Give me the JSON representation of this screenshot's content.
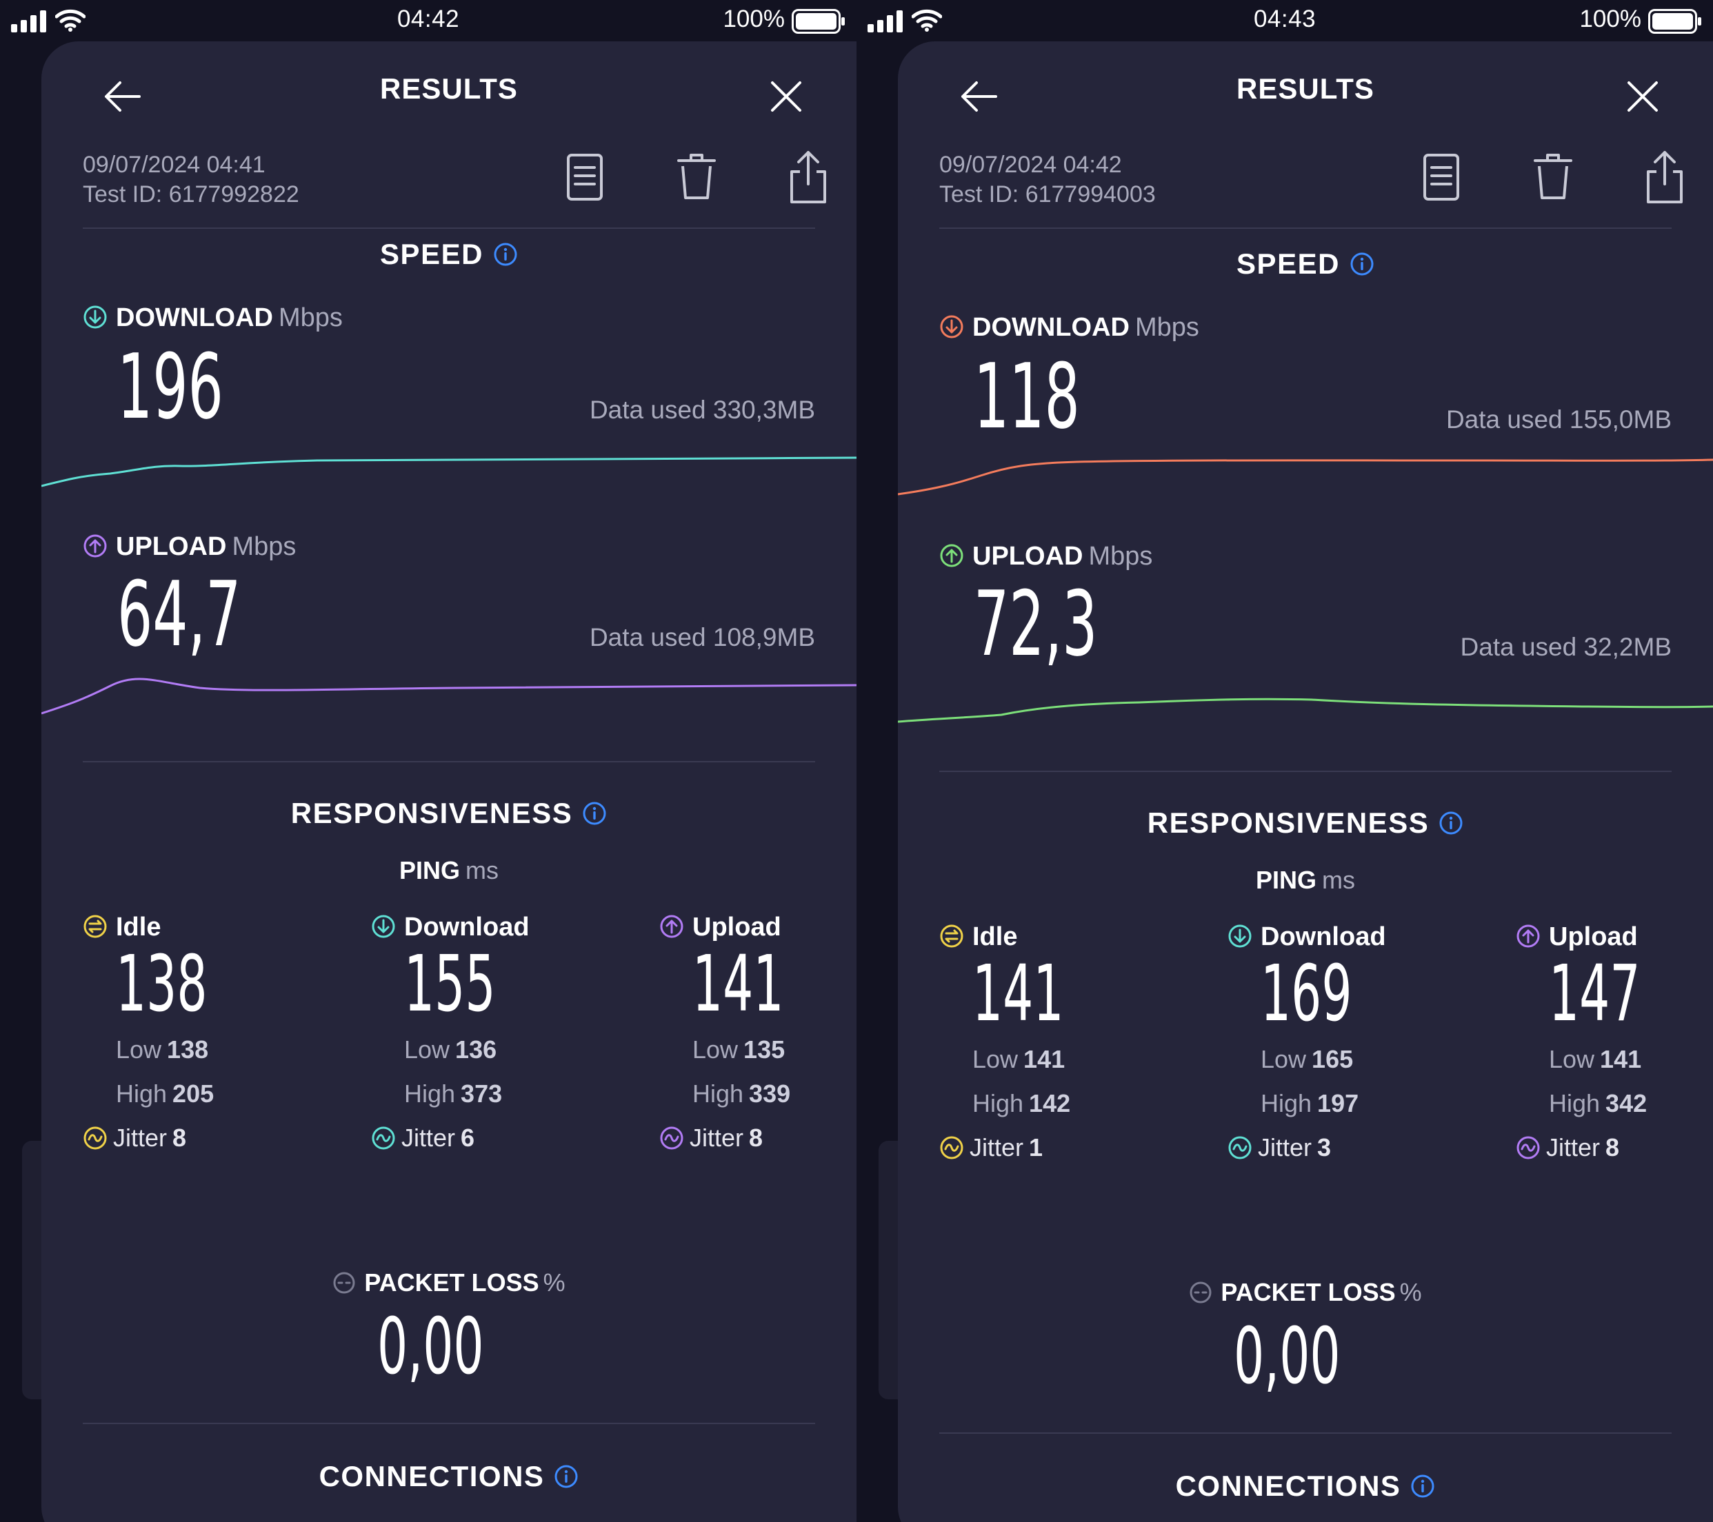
{
  "colors": {
    "background": "#121221",
    "card": "#25253a",
    "accent_info": "#3d8bff",
    "download_left": "#5fe0d4",
    "upload_left": "#b27cf5",
    "download_right": "#f47c5c",
    "upload_right": "#7de07a",
    "idle": "#f0d248",
    "ping_download": "#5fe0d4",
    "ping_upload": "#b27cf5"
  },
  "screens": [
    {
      "status": {
        "time": "04:42",
        "battery": "100%"
      },
      "header": {
        "title": "RESULTS",
        "back_icon": "arrow-left-icon",
        "close_icon": "close-icon"
      },
      "meta": {
        "date": "09/07/2024 04:41",
        "test_id": "Test ID: 6177992822"
      },
      "toolbar_icons": [
        "results-list-icon",
        "trash-icon",
        "share-icon"
      ],
      "speed": {
        "title": "SPEED",
        "download": {
          "label": "DOWNLOAD",
          "unit": "Mbps",
          "value": "196",
          "data_used": "Data used 330,3MB"
        },
        "upload": {
          "label": "UPLOAD",
          "unit": "Mbps",
          "value": "64,7",
          "data_used": "Data used 108,9MB"
        }
      },
      "responsiveness": {
        "title": "RESPONSIVENESS",
        "ping_label": "PING",
        "ping_unit": "ms",
        "columns": [
          {
            "label": "Idle",
            "value": "138",
            "low_label": "Low",
            "low": "138",
            "high_label": "High",
            "high": "205",
            "jitter_label": "Jitter",
            "jitter": "8"
          },
          {
            "label": "Download",
            "value": "155",
            "low_label": "Low",
            "low": "136",
            "high_label": "High",
            "high": "373",
            "jitter_label": "Jitter",
            "jitter": "6"
          },
          {
            "label": "Upload",
            "value": "141",
            "low_label": "Low",
            "low": "135",
            "high_label": "High",
            "high": "339",
            "jitter_label": "Jitter",
            "jitter": "8"
          }
        ]
      },
      "packet_loss": {
        "label": "PACKET LOSS",
        "unit": "%",
        "value": "0,00"
      },
      "connections": {
        "title": "CONNECTIONS"
      }
    },
    {
      "status": {
        "time": "04:43",
        "battery": "100%"
      },
      "header": {
        "title": "RESULTS",
        "back_icon": "arrow-left-icon",
        "close_icon": "close-icon"
      },
      "meta": {
        "date": "09/07/2024 04:42",
        "test_id": "Test ID: 6177994003"
      },
      "toolbar_icons": [
        "results-list-icon",
        "trash-icon",
        "share-icon"
      ],
      "speed": {
        "title": "SPEED",
        "download": {
          "label": "DOWNLOAD",
          "unit": "Mbps",
          "value": "118",
          "data_used": "Data used 155,0MB"
        },
        "upload": {
          "label": "UPLOAD",
          "unit": "Mbps",
          "value": "72,3",
          "data_used": "Data used 32,2MB"
        }
      },
      "responsiveness": {
        "title": "RESPONSIVENESS",
        "ping_label": "PING",
        "ping_unit": "ms",
        "columns": [
          {
            "label": "Idle",
            "value": "141",
            "low_label": "Low",
            "low": "141",
            "high_label": "High",
            "high": "142",
            "jitter_label": "Jitter",
            "jitter": "1"
          },
          {
            "label": "Download",
            "value": "169",
            "low_label": "Low",
            "low": "165",
            "high_label": "High",
            "high": "197",
            "jitter_label": "Jitter",
            "jitter": "3"
          },
          {
            "label": "Upload",
            "value": "147",
            "low_label": "Low",
            "low": "141",
            "high_label": "High",
            "high": "342",
            "jitter_label": "Jitter",
            "jitter": "8"
          }
        ]
      },
      "packet_loss": {
        "label": "PACKET LOSS",
        "unit": "%",
        "value": "0,00"
      },
      "connections": {
        "title": "CONNECTIONS"
      }
    }
  ]
}
